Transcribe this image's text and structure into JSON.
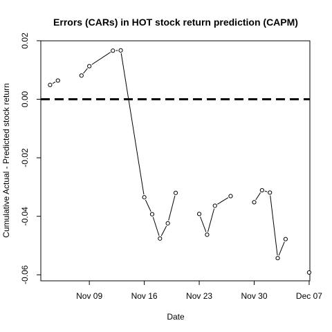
{
  "chart_data": {
    "type": "line",
    "title": "Errors (CARs) in HOT stock return prediction (CAPM)",
    "xlabel": "Date",
    "ylabel": "Cumulative Actual - Predicted stock return",
    "xlim": [
      0,
      37
    ],
    "ylim": [
      -0.063,
      0.02
    ],
    "x_ticks": [
      {
        "day": 6,
        "label": "Nov 09"
      },
      {
        "day": 13,
        "label": "Nov 16"
      },
      {
        "day": 20,
        "label": "Nov 23"
      },
      {
        "day": 27,
        "label": "Nov 30"
      },
      {
        "day": 34,
        "label": "Dec 07"
      }
    ],
    "y_ticks": [
      {
        "value": 0.02,
        "label": "0.02"
      },
      {
        "value": 0.0,
        "label": "0.00"
      },
      {
        "value": -0.02,
        "label": "-0.02"
      },
      {
        "value": -0.04,
        "label": "-0.04"
      },
      {
        "value": -0.06,
        "label": "-0.06"
      }
    ],
    "reference_line": {
      "value": 0.0,
      "style": "dashed"
    },
    "series": [
      {
        "name": "CAR",
        "segments": [
          [
            {
              "day": 1,
              "value": 0.0049
            },
            {
              "day": 2,
              "value": 0.0064
            }
          ],
          [
            {
              "day": 5,
              "value": 0.0081
            },
            {
              "day": 6,
              "value": 0.0113
            },
            {
              "day": 9,
              "value": 0.0166
            },
            {
              "day": 10,
              "value": 0.0167
            },
            {
              "day": 13,
              "value": -0.0335
            },
            {
              "day": 14,
              "value": -0.0393
            },
            {
              "day": 15,
              "value": -0.0476
            },
            {
              "day": 16,
              "value": -0.0424
            },
            {
              "day": 17,
              "value": -0.032
            }
          ],
          [
            {
              "day": 20,
              "value": -0.0392
            },
            {
              "day": 21,
              "value": -0.0463
            },
            {
              "day": 22,
              "value": -0.0364
            },
            {
              "day": 24,
              "value": -0.0331
            }
          ],
          [
            {
              "day": 27,
              "value": -0.0352
            },
            {
              "day": 28,
              "value": -0.0311
            },
            {
              "day": 29,
              "value": -0.0319
            },
            {
              "day": 30,
              "value": -0.0543
            },
            {
              "day": 31,
              "value": -0.0478
            }
          ],
          [
            {
              "day": 34,
              "value": -0.0592
            }
          ]
        ]
      }
    ]
  }
}
